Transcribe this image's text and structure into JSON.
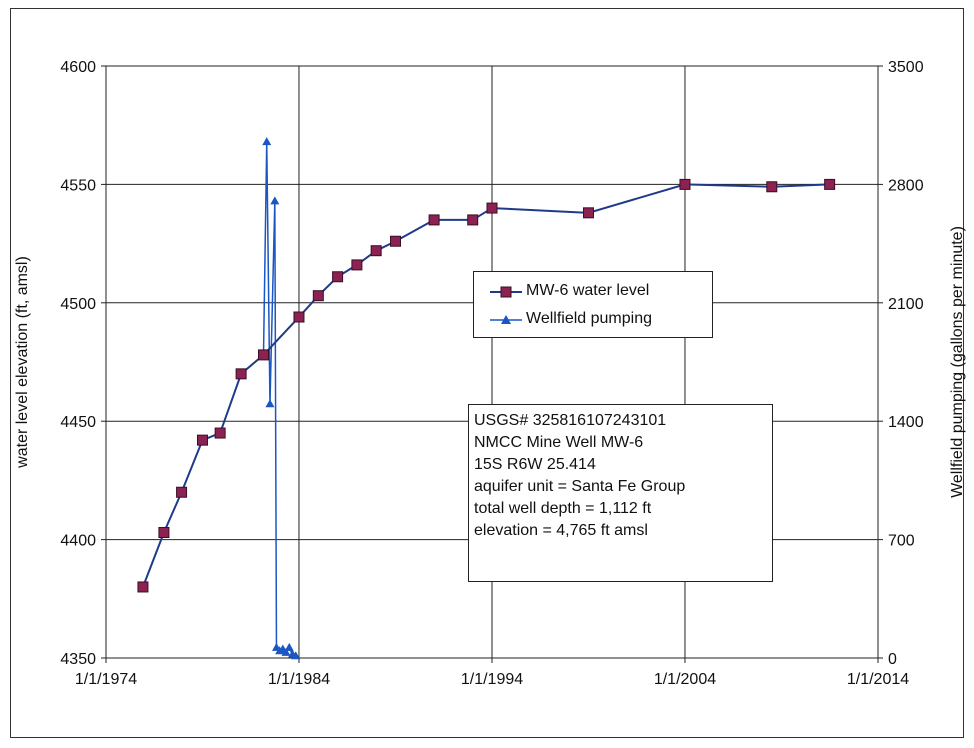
{
  "chart_data": {
    "type": "line",
    "y_left": {
      "label": "water level elevation (ft, amsl)",
      "lim": [
        4350,
        4600
      ],
      "ticks": [
        "4350",
        "4400",
        "4450",
        "4500",
        "4550",
        "4600"
      ],
      "tick_values": [
        4350,
        4400,
        4450,
        4500,
        4550,
        4600
      ]
    },
    "y_right": {
      "label": "Wellfield pumping (gallons per minute)",
      "lim": [
        0,
        3500
      ],
      "ticks": [
        "0",
        "700",
        "1400",
        "2100",
        "2800",
        "3500"
      ],
      "tick_values": [
        0,
        700,
        1400,
        2100,
        2800,
        3500
      ]
    },
    "x_axis": {
      "lim": [
        "1974-01-01",
        "2014-01-01"
      ],
      "ticks": [
        "1/1/1974",
        "1/1/1984",
        "1/1/1994",
        "1/1/2004",
        "1/1/2014"
      ],
      "tick_dates": [
        "1974-01-01",
        "1984-01-01",
        "1994-01-01",
        "2004-01-01",
        "2014-01-01"
      ]
    },
    "grid": true,
    "legend_position": "center-right",
    "series": [
      {
        "name": "MW-6 water level",
        "axis": "left",
        "color": "#1f3a8a",
        "marker": "square",
        "marker_color": "#8b2252",
        "points": [
          [
            "1975-12-01",
            4380
          ],
          [
            "1977-01-01",
            4403
          ],
          [
            "1977-12-01",
            4420
          ],
          [
            "1979-01-01",
            4442
          ],
          [
            "1979-12-01",
            4445
          ],
          [
            "1981-01-01",
            4470
          ],
          [
            "1982-03-01",
            4478
          ],
          [
            "1984-01-01",
            4494
          ],
          [
            "1985-01-01",
            4503
          ],
          [
            "1986-01-01",
            4511
          ],
          [
            "1987-01-01",
            4516
          ],
          [
            "1988-01-01",
            4522
          ],
          [
            "1989-01-01",
            4526
          ],
          [
            "1991-01-01",
            4535
          ],
          [
            "1993-01-01",
            4535
          ],
          [
            "1994-01-01",
            4540
          ],
          [
            "1999-01-01",
            4538
          ],
          [
            "2004-01-01",
            4550
          ],
          [
            "2008-07-01",
            4549
          ],
          [
            "2011-07-01",
            4550
          ]
        ]
      },
      {
        "name": "Wellfield pumping",
        "axis": "right",
        "color": "#1a56c4",
        "marker": "triangle",
        "points": [
          [
            "1982-03-01",
            1800
          ],
          [
            "1982-05-01",
            3050
          ],
          [
            "1982-07-01",
            1500
          ],
          [
            "1982-10-01",
            2700
          ],
          [
            "1982-11-01",
            60
          ],
          [
            "1983-01-01",
            40
          ],
          [
            "1983-03-01",
            50
          ],
          [
            "1983-05-01",
            30
          ],
          [
            "1983-07-01",
            60
          ],
          [
            "1983-09-01",
            20
          ],
          [
            "1983-11-01",
            10
          ]
        ]
      }
    ]
  },
  "info_box": [
    "USGS# 325816107243101",
    "NMCC Mine Well MW-6",
    "15S R6W 25.414",
    "aquifer unit = Santa Fe Group",
    "total well depth = 1,112 ft",
    "elevation = 4,765 ft amsl"
  ]
}
